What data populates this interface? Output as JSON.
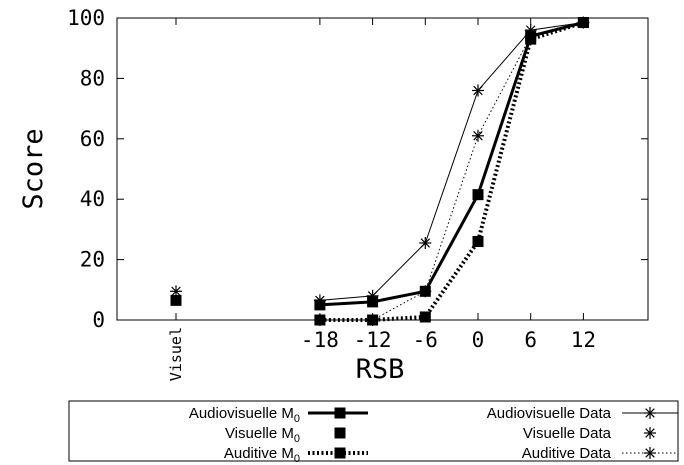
{
  "chart_data": {
    "type": "line",
    "xlabel": "RSB",
    "ylabel": "Score",
    "x_ticks": [
      {
        "label": "Visuel",
        "value": "Visuel"
      },
      {
        "label": "-18",
        "value": -18
      },
      {
        "label": "-12",
        "value": -12
      },
      {
        "label": "-6",
        "value": -6
      },
      {
        "label": "0",
        "value": 0
      },
      {
        "label": "6",
        "value": 6
      },
      {
        "label": "12",
        "value": 12
      }
    ],
    "y_ticks": [
      "0",
      "20",
      "40",
      "60",
      "80",
      "100"
    ],
    "ylim": [
      0,
      100
    ],
    "grid": false,
    "legend_position": "below",
    "series": [
      {
        "name": "Audiovisuelle M0",
        "style": "thick-solid",
        "marker": "square",
        "x": [
          -18,
          -12,
          -6,
          0,
          6,
          12
        ],
        "y": [
          5,
          6,
          9.5,
          41.5,
          94,
          98.5
        ]
      },
      {
        "name": "Visuelle M0",
        "style": "none",
        "marker": "square",
        "x": [
          "Visuel"
        ],
        "y": [
          6.5
        ]
      },
      {
        "name": "Auditive M0",
        "style": "thick-dotted",
        "marker": "square",
        "x": [
          -18,
          -12,
          -6,
          0,
          6,
          12
        ],
        "y": [
          0,
          0,
          1,
          26,
          93,
          98.5
        ]
      },
      {
        "name": "Audiovisuelle Data",
        "style": "thin-solid",
        "marker": "star",
        "x": [
          -18,
          -12,
          -6,
          0,
          6,
          12
        ],
        "y": [
          6.5,
          8,
          25.5,
          76,
          96,
          98.5
        ]
      },
      {
        "name": "Visuelle Data",
        "style": "none",
        "marker": "star",
        "x": [
          "Visuel"
        ],
        "y": [
          9.5
        ]
      },
      {
        "name": "Auditive Data",
        "style": "thin-dotted",
        "marker": "star",
        "x": [
          -18,
          -12,
          -6,
          0,
          6,
          12
        ],
        "y": [
          0,
          0,
          9.5,
          61,
          94,
          98.5
        ]
      }
    ],
    "legend": {
      "left": [
        {
          "series": 0,
          "label": "Audiovisuelle M",
          "sub": "0"
        },
        {
          "series": 1,
          "label": "Visuelle M",
          "sub": "0"
        },
        {
          "series": 2,
          "label": "Auditive M",
          "sub": "0"
        }
      ],
      "right": [
        {
          "series": 3,
          "label": "Audiovisuelle Data"
        },
        {
          "series": 4,
          "label": "Visuelle Data"
        },
        {
          "series": 5,
          "label": "Auditive Data"
        }
      ]
    },
    "colors": {
      "ink": "#000000",
      "background": "#ffffff"
    }
  }
}
